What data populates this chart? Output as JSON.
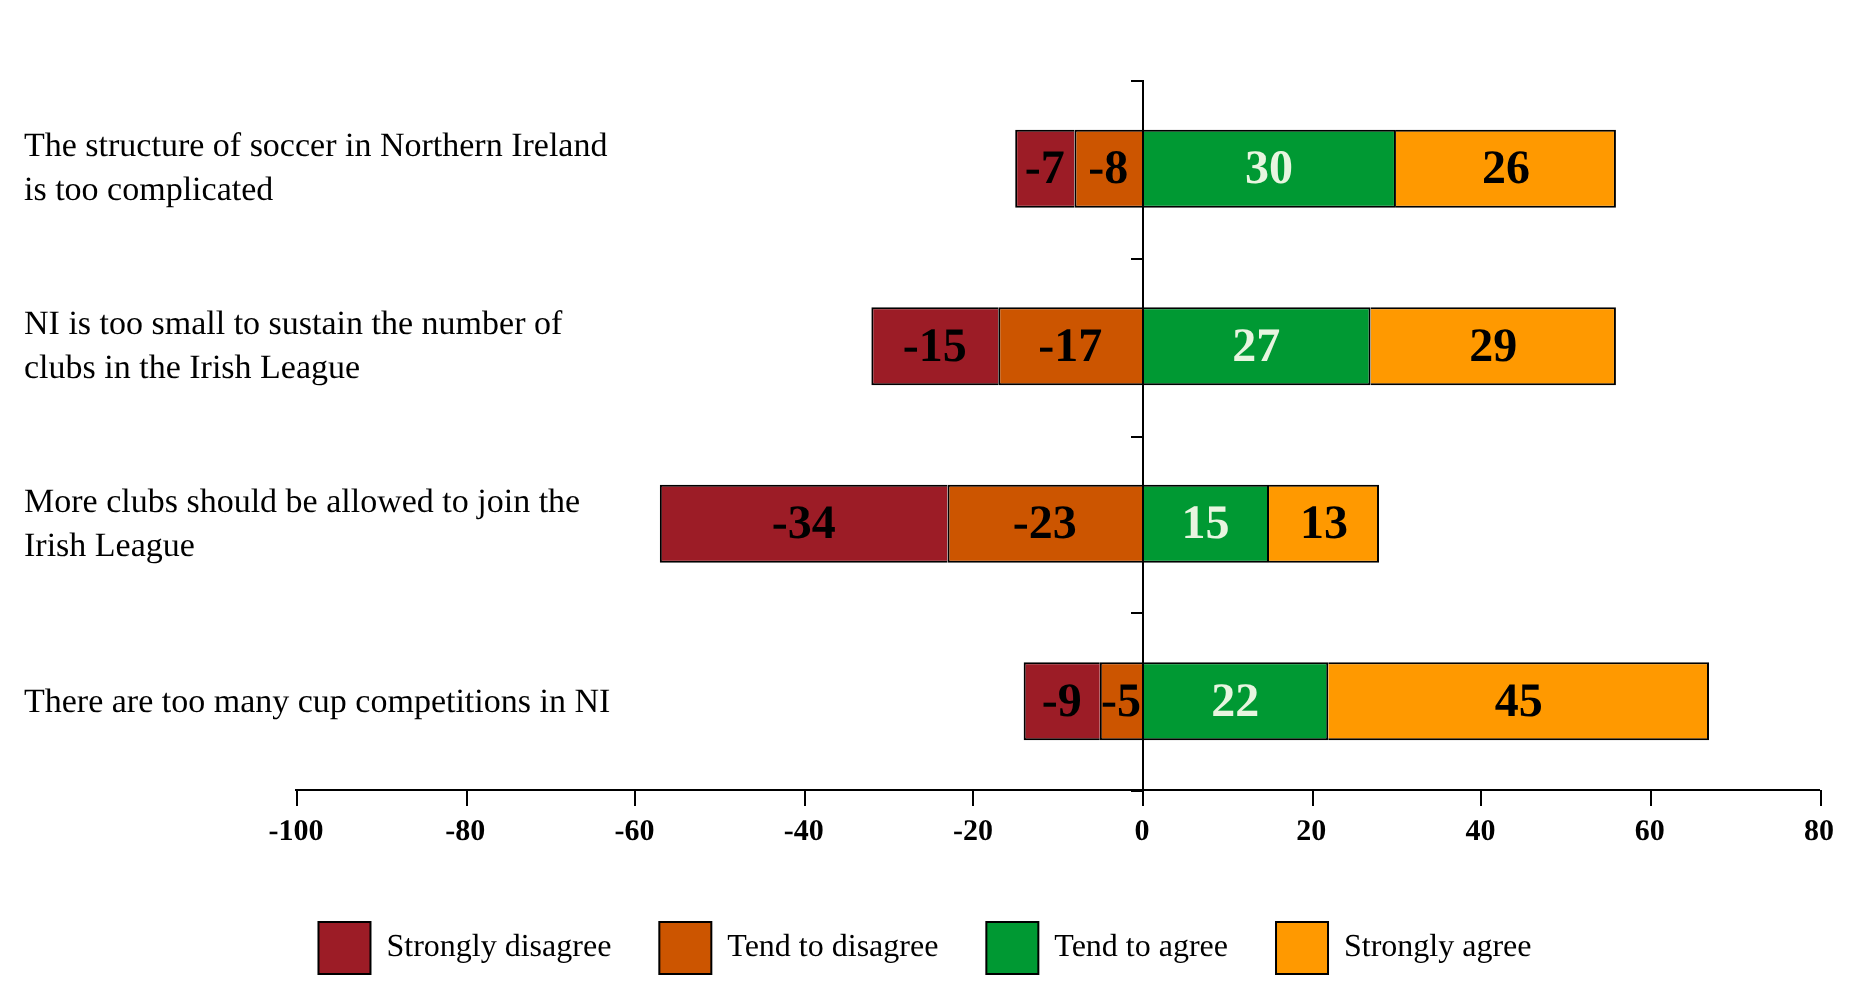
{
  "chart_data": {
    "type": "bar",
    "orientation": "horizontal",
    "stacked": true,
    "data_labels": true,
    "legend": "bottom",
    "grid": false,
    "categories": [
      "The structure of soccer in Northern Ireland is too complicated",
      "NI is too small to sustain the number of clubs in the Irish League",
      "More clubs should be allowed to join the Irish League",
      "There are too many cup competitions in NI"
    ],
    "series": [
      {
        "name": "Tend to disagree",
        "color": "#cc5500",
        "values": [
          -8,
          -17,
          -23,
          -5
        ]
      },
      {
        "name": "Strongly disagree",
        "color": "#9c1c26",
        "values": [
          -7,
          -15,
          -34,
          -9
        ]
      },
      {
        "name": "Tend to agree",
        "color": "#009933",
        "values": [
          30,
          27,
          15,
          22
        ]
      },
      {
        "name": "Strongly agree",
        "color": "#ff9900",
        "values": [
          26,
          29,
          13,
          45
        ]
      }
    ],
    "ref_lines": [
      {
        "axis": "x",
        "value": 0
      }
    ],
    "xlim": [
      -100,
      80
    ],
    "xticks": [
      -100,
      -80,
      -60,
      -40,
      -20,
      0,
      20,
      40,
      60,
      80
    ]
  }
}
